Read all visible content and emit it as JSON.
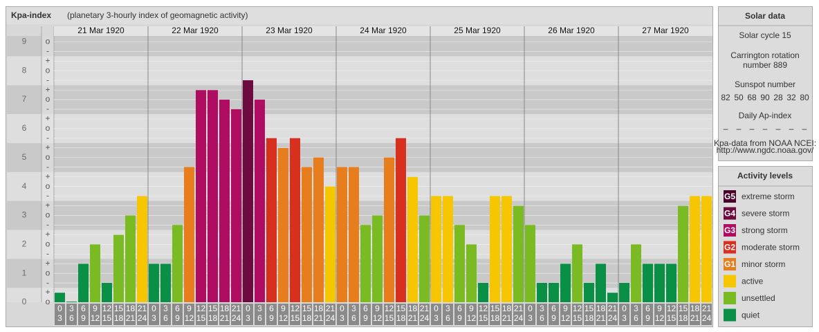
{
  "chart_data": {
    "type": "bar",
    "title": "Kpa-index",
    "subtitle": "(planetary 3-hourly index of geomagnetic activity)",
    "days": [
      "21 Mar 1920",
      "22 Mar 1920",
      "23 Mar 1920",
      "24 Mar 1920",
      "25 Mar 1920",
      "26 Mar 1920",
      "27 Mar 1920"
    ],
    "hours": [
      [
        "0",
        "3"
      ],
      [
        "3",
        "6"
      ],
      [
        "6",
        "9"
      ],
      [
        "9",
        "12"
      ],
      [
        "12",
        "15"
      ],
      [
        "15",
        "18"
      ],
      [
        "18",
        "21"
      ],
      [
        "21",
        "24"
      ]
    ],
    "values": [
      0.33,
      0,
      1.33,
      2,
      0.67,
      2.33,
      3,
      3.67,
      1.33,
      1.33,
      2.67,
      4.67,
      7.33,
      7.33,
      7,
      6.67,
      7.67,
      7,
      5.67,
      5.33,
      5.67,
      4.67,
      5,
      4,
      4.67,
      4.67,
      2.67,
      3,
      5,
      5.67,
      4.33,
      3,
      3.67,
      3.67,
      2.67,
      2,
      0.67,
      3.67,
      3.67,
      3.33,
      2.67,
      0.67,
      0.67,
      1.33,
      2,
      0.67,
      1.33,
      0.33,
      0.67,
      2,
      1.33,
      1.33,
      1.33,
      3.33,
      3.67,
      3.67
    ],
    "colors": [
      "#0a8f47",
      "#0a8f47",
      "#0a8f47",
      "#7aba23",
      "#0a8f47",
      "#7aba23",
      "#7aba23",
      "#f6c600",
      "#0a8f47",
      "#0a8f47",
      "#7aba23",
      "#e87d1e",
      "#ae0d61",
      "#ae0d61",
      "#ae0d61",
      "#ae0d61",
      "#6d0a3f",
      "#ae0d61",
      "#d7301e",
      "#e87d1e",
      "#d7301e",
      "#e87d1e",
      "#e87d1e",
      "#f6c600",
      "#e87d1e",
      "#e87d1e",
      "#7aba23",
      "#7aba23",
      "#e87d1e",
      "#d7301e",
      "#f6c600",
      "#7aba23",
      "#f6c600",
      "#f6c600",
      "#7aba23",
      "#7aba23",
      "#0a8f47",
      "#f6c600",
      "#f6c600",
      "#7aba23",
      "#7aba23",
      "#0a8f47",
      "#0a8f47",
      "#0a8f47",
      "#7aba23",
      "#0a8f47",
      "#0a8f47",
      "#0a8f47",
      "#0a8f47",
      "#7aba23",
      "#0a8f47",
      "#0a8f47",
      "#0a8f47",
      "#7aba23",
      "#f6c600",
      "#f6c600"
    ],
    "ylim": [
      0,
      9.2
    ],
    "yticks": [
      0,
      1,
      2,
      3,
      4,
      5,
      6,
      7,
      8,
      9
    ],
    "minor_ticks": [
      "-",
      "o",
      "+"
    ]
  },
  "solar_data": {
    "title": "Solar data",
    "cycle": "Solar cycle 15",
    "carrington": [
      "Carrington rotation",
      "number 889"
    ],
    "sunspot_label": "Sunspot number",
    "sunspot_values": [
      82,
      50,
      68,
      90,
      28,
      32,
      80
    ],
    "ap_label": "Daily Ap-index",
    "ap_values": [
      "–",
      "–",
      "–",
      "–",
      "–",
      "–",
      "–"
    ],
    "source": [
      "Kpa-data from NOAA NCEI:",
      "http://www.ngdc.noaa.gov/"
    ]
  },
  "activity_levels": {
    "title": "Activity levels",
    "items": [
      {
        "badge": "G5",
        "label": "extreme storm",
        "color": "#4a0028"
      },
      {
        "badge": "G4",
        "label": "severe storm",
        "color": "#6d0a3f"
      },
      {
        "badge": "G3",
        "label": "strong storm",
        "color": "#ae0d61"
      },
      {
        "badge": "G2",
        "label": "moderate storm",
        "color": "#d7301e"
      },
      {
        "badge": "G1",
        "label": "minor storm",
        "color": "#e87d1e"
      },
      {
        "label": "active",
        "color": "#f6c600"
      },
      {
        "label": "unsettled",
        "color": "#7aba23"
      },
      {
        "label": "quiet",
        "color": "#0a8f47"
      }
    ]
  }
}
